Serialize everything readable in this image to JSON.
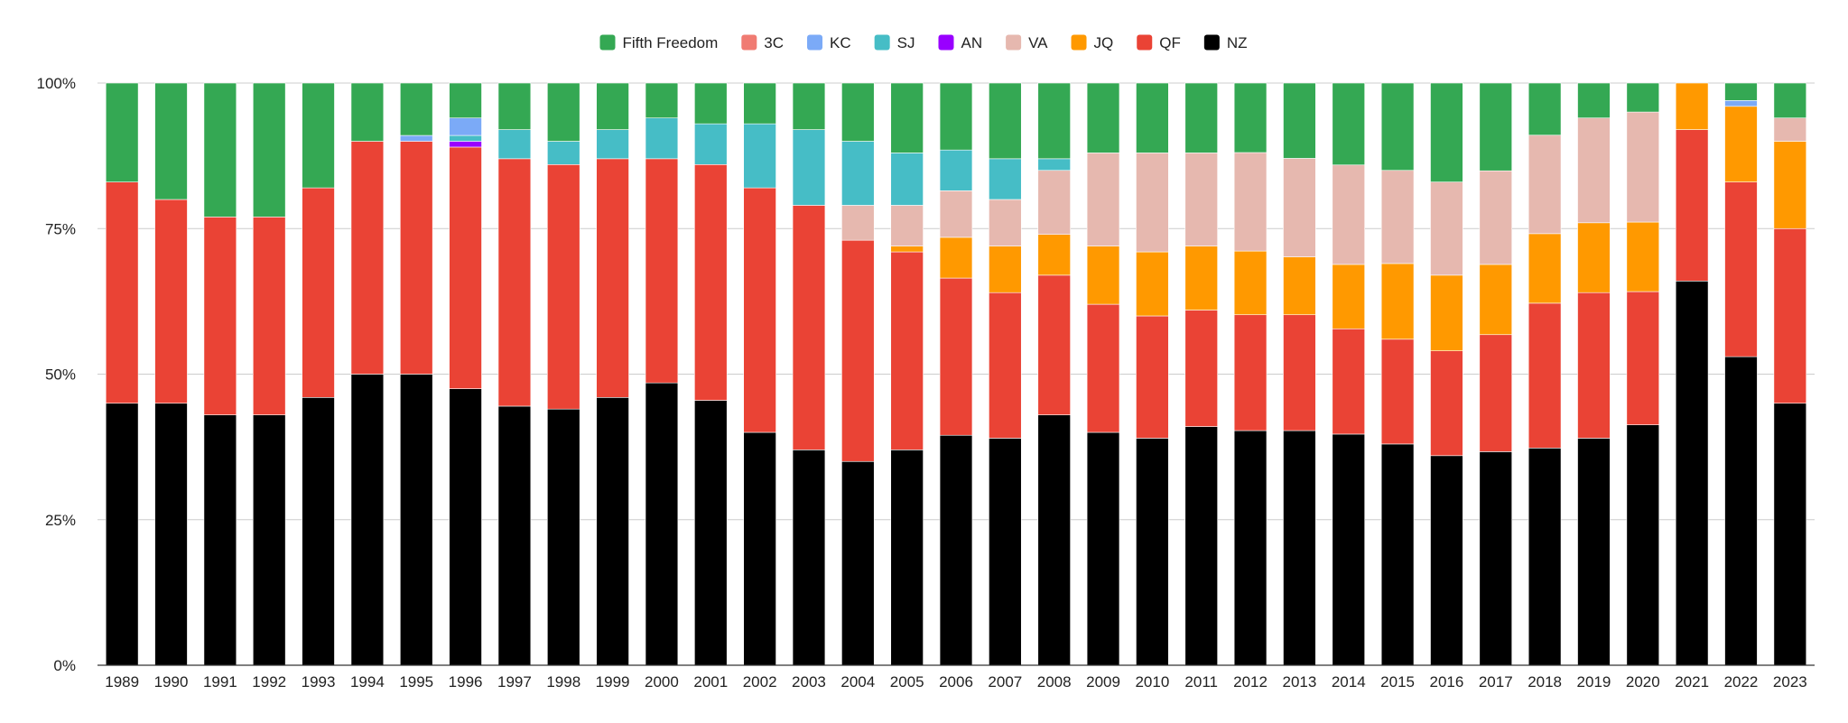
{
  "chart_data": {
    "type": "bar",
    "stacked": "percent",
    "title": "",
    "xlabel": "",
    "ylabel": "",
    "ylim": [
      0,
      100
    ],
    "ytick_labels": [
      "0%",
      "25%",
      "50%",
      "75%",
      "100%"
    ],
    "ytick_values": [
      0,
      25,
      50,
      75,
      100
    ],
    "grid": true,
    "legend_position": "top",
    "categories": [
      "1989",
      "1990",
      "1991",
      "1992",
      "1993",
      "1994",
      "1995",
      "1996",
      "1997",
      "1998",
      "1999",
      "2000",
      "2001",
      "2002",
      "2003",
      "2004",
      "2005",
      "2006",
      "2007",
      "2008",
      "2009",
      "2010",
      "2011",
      "2012",
      "2013",
      "2014",
      "2015",
      "2016",
      "2017",
      "2018",
      "2019",
      "2020",
      "2021",
      "2022",
      "2023"
    ],
    "legend_order": [
      "Fifth Freedom",
      "3C",
      "KC",
      "SJ",
      "AN",
      "VA",
      "JQ",
      "QF",
      "NZ"
    ],
    "series": [
      {
        "name": "NZ",
        "color": "#000000",
        "values": [
          45,
          45,
          43,
          43,
          46,
          50,
          50,
          47.5,
          44.5,
          44,
          46,
          48.5,
          45.5,
          40,
          37,
          35,
          37,
          39.5,
          39,
          43,
          40,
          39,
          41,
          40.5,
          40.5,
          39.5,
          38,
          36,
          36.5,
          37.5,
          39,
          41.5,
          66,
          53,
          45
        ]
      },
      {
        "name": "QF",
        "color": "#ea4335",
        "values": [
          38,
          35,
          34,
          34,
          36,
          40,
          40,
          41.5,
          42.5,
          42,
          41,
          38.5,
          40.5,
          42,
          42,
          38,
          34,
          27,
          25,
          24,
          22,
          21,
          20,
          20,
          20,
          18,
          18,
          18,
          20,
          25,
          25,
          23,
          26,
          30,
          30
        ]
      },
      {
        "name": "JQ",
        "color": "#ff9900",
        "values": [
          0,
          0,
          0,
          0,
          0,
          0,
          0,
          0,
          0,
          0,
          0,
          0,
          0,
          0,
          0,
          0,
          1,
          7,
          8,
          7,
          10,
          11,
          11,
          11,
          10,
          11,
          13,
          13,
          12,
          12,
          12,
          12,
          8,
          13,
          15
        ]
      },
      {
        "name": "VA",
        "color": "#e6b8af",
        "values": [
          0,
          0,
          0,
          0,
          0,
          0,
          0,
          0,
          0,
          0,
          0,
          0,
          0,
          0,
          0,
          6,
          7,
          8,
          8,
          11,
          16,
          17,
          16,
          17,
          17,
          17,
          16,
          16,
          16,
          17,
          18,
          19,
          0,
          0,
          4
        ]
      },
      {
        "name": "AN",
        "color": "#9900ff",
        "values": [
          0,
          0,
          0,
          0,
          0,
          0,
          0,
          1,
          0,
          0,
          0,
          0,
          0,
          0,
          0,
          0,
          0,
          0,
          0,
          0,
          0,
          0,
          0,
          0,
          0,
          0,
          0,
          0,
          0,
          0,
          0,
          0,
          0,
          0,
          0
        ]
      },
      {
        "name": "SJ",
        "color": "#46bdc6",
        "values": [
          0,
          0,
          0,
          0,
          0,
          0,
          0,
          1,
          5,
          4,
          5,
          7,
          7,
          11,
          13,
          11,
          9,
          7,
          7,
          2,
          0,
          0,
          0,
          0,
          0,
          0,
          0,
          0,
          0,
          0,
          0,
          0,
          0,
          0,
          0
        ]
      },
      {
        "name": "KC",
        "color": "#7baaf7",
        "values": [
          0,
          0,
          0,
          0,
          0,
          0,
          1,
          3,
          0,
          0,
          0,
          0,
          0,
          0,
          0,
          0,
          0,
          0,
          0,
          0,
          0,
          0,
          0,
          0,
          0,
          0,
          0,
          0,
          0,
          0,
          0,
          0,
          0,
          1,
          0
        ]
      },
      {
        "name": "3C",
        "color": "#f07b72",
        "values": [
          0,
          0,
          0,
          0,
          0,
          0,
          0,
          0,
          0,
          0,
          0,
          0,
          0,
          0,
          0,
          0,
          0,
          0,
          0,
          0,
          0,
          0,
          0,
          0,
          0,
          0,
          0,
          0,
          0,
          0,
          0,
          0,
          0,
          0,
          0
        ]
      },
      {
        "name": "Fifth Freedom",
        "color": "#34a853",
        "values": [
          17,
          20,
          23,
          23,
          18,
          10,
          9,
          6,
          8,
          10,
          8,
          6,
          7,
          7,
          8,
          10,
          12,
          11.5,
          13,
          13,
          12,
          12,
          12,
          12,
          13,
          14,
          15,
          17,
          15,
          9,
          6,
          5,
          0,
          3,
          6
        ]
      }
    ]
  }
}
